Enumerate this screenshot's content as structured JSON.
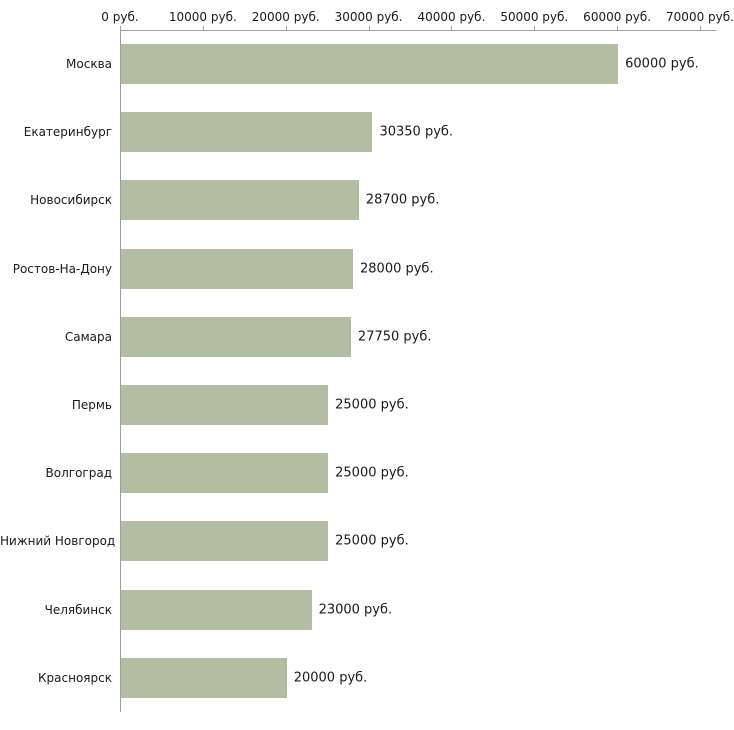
{
  "chart_data": {
    "type": "bar",
    "orientation": "horizontal",
    "title": "",
    "xlabel": "",
    "ylabel": "",
    "categories": [
      "Москва",
      "Екатеринбург",
      "Новосибирск",
      "Ростов-На-Дону",
      "Самара",
      "Пермь",
      "Волгоград",
      "Нижний Новгород",
      "Челябинск",
      "Красноярск"
    ],
    "values": [
      60000,
      30350,
      28700,
      28000,
      27750,
      25000,
      25000,
      25000,
      23000,
      20000
    ],
    "value_labels": [
      "60000 руб.",
      "30350 руб.",
      "28700 руб.",
      "28000 руб.",
      "27750 руб.",
      "25000 руб.",
      "25000 руб.",
      "25000 руб.",
      "23000 руб.",
      "20000 руб."
    ],
    "x_ticks": [
      {
        "value": 0,
        "label": "0 руб."
      },
      {
        "value": 10000,
        "label": "10000 руб."
      },
      {
        "value": 20000,
        "label": "20000 руб."
      },
      {
        "value": 30000,
        "label": "30000 руб."
      },
      {
        "value": 40000,
        "label": "40000 руб."
      },
      {
        "value": 50000,
        "label": "50000 руб."
      },
      {
        "value": 60000,
        "label": "60000 руб."
      },
      {
        "value": 70000,
        "label": "70000 руб."
      }
    ],
    "xlim": [
      0,
      70000
    ],
    "grid": false,
    "legend": false,
    "colors": {
      "bar": "#b3bda1",
      "axis": "#9aa0a0",
      "text": "#1a1a1a"
    }
  }
}
